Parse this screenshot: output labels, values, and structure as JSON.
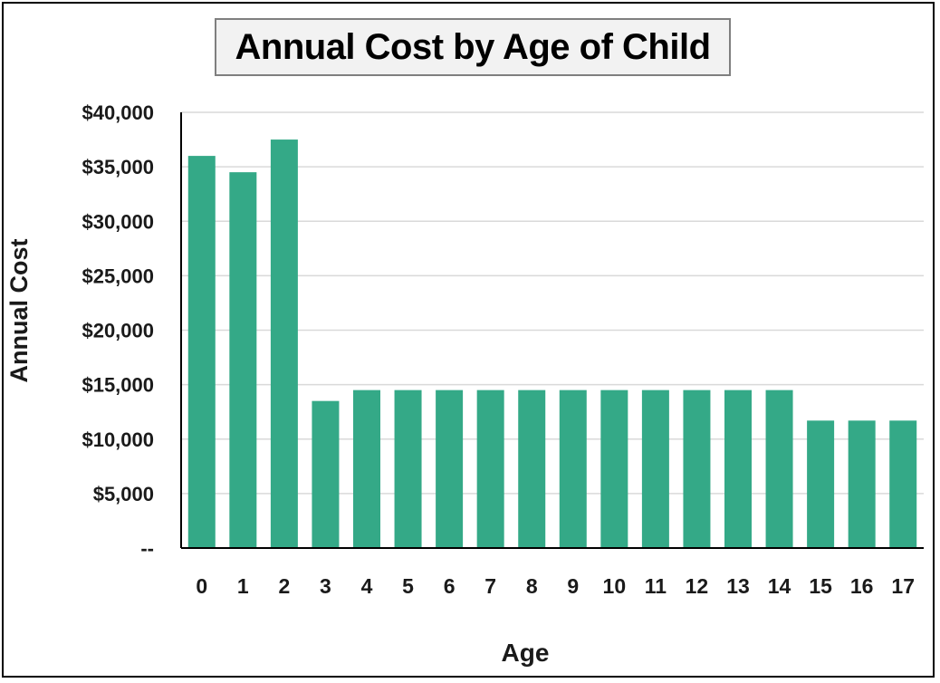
{
  "chart_data": {
    "type": "bar",
    "title": "Annual Cost by Age of Child",
    "xlabel": "Age",
    "ylabel": "Annual Cost",
    "categories": [
      "0",
      "1",
      "2",
      "3",
      "4",
      "5",
      "6",
      "7",
      "8",
      "9",
      "10",
      "11",
      "12",
      "13",
      "14",
      "15",
      "16",
      "17"
    ],
    "values": [
      36000,
      34500,
      37500,
      13500,
      14500,
      14500,
      14500,
      14500,
      14500,
      14500,
      14500,
      14500,
      14500,
      14500,
      14500,
      11700,
      11700,
      11700
    ],
    "ylim": [
      0,
      40000
    ],
    "yticks": [
      0,
      5000,
      10000,
      15000,
      20000,
      25000,
      30000,
      35000,
      40000
    ],
    "ytick_labels": [
      "--",
      "$5,000",
      "$10,000",
      "$15,000",
      "$20,000",
      "$25,000",
      "$30,000",
      "$35,000",
      "$40,000"
    ],
    "grid": true,
    "legend": "none",
    "colors": {
      "bar": "#34a987",
      "grid": "#d9d9d9",
      "axis": "#000000"
    }
  }
}
